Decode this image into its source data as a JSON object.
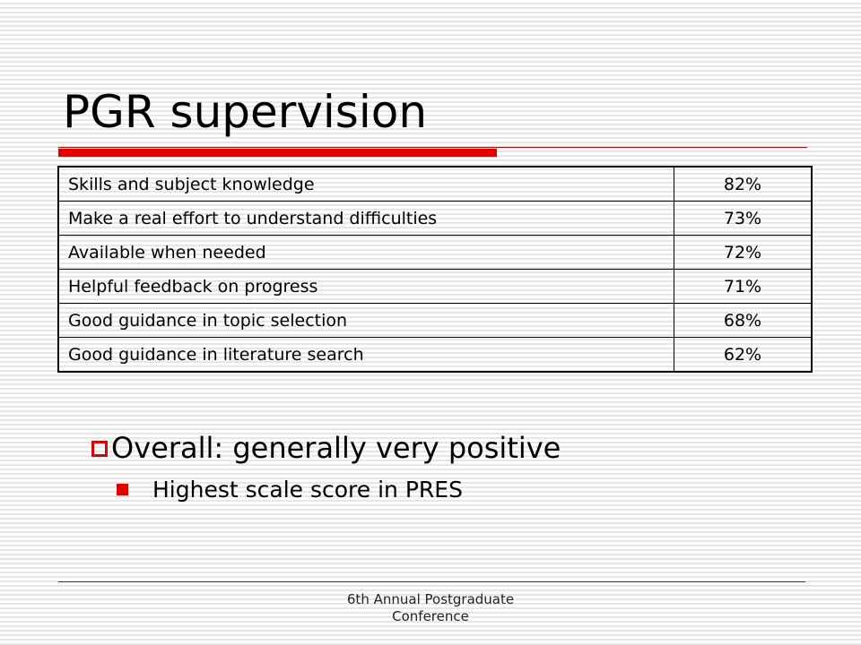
{
  "slide": {
    "title": "PGR supervision",
    "accent_color": "#e00000",
    "table": {
      "rows": [
        {
          "label": "Skills and subject knowledge",
          "value": "82%"
        },
        {
          "label": "Make a real effort to understand difficulties",
          "value": "73%"
        },
        {
          "label": "Available when needed",
          "value": "72%"
        },
        {
          "label": "Helpful feedback on progress",
          "value": "71%"
        },
        {
          "label": "Good guidance in topic selection",
          "value": "68%"
        },
        {
          "label": "Good guidance in literature search",
          "value": "62%"
        }
      ]
    },
    "bullets": [
      {
        "text": "Overall: generally very positive",
        "icon": "hollow-square-bullet-icon",
        "sub": [
          {
            "text": "Highest scale score in PRES",
            "icon": "solid-square-bullet-icon"
          }
        ]
      }
    ],
    "footer": {
      "line1": "6th Annual Postgraduate",
      "line2": "Conference"
    }
  }
}
